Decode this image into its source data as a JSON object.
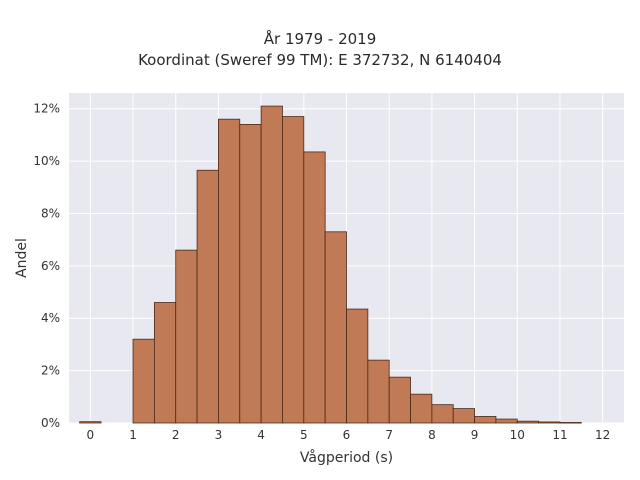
{
  "chart_data": {
    "type": "bar",
    "title": [
      "År 1979 - 2019",
      "Koordinat (Sweref 99 TM): E 372732, N 6140404"
    ],
    "xlabel": "Vågperiod (s)",
    "ylabel": "Andel",
    "xlim": [
      -0.5,
      12.5
    ],
    "ylim": [
      0,
      0.126
    ],
    "xticks": [
      0,
      1,
      2,
      3,
      4,
      5,
      6,
      7,
      8,
      9,
      10,
      11,
      12
    ],
    "xtick_labels": [
      "0",
      "1",
      "2",
      "3",
      "4",
      "5",
      "6",
      "7",
      "8",
      "9",
      "10",
      "11",
      "12"
    ],
    "yticks": [
      0,
      0.02,
      0.04,
      0.06,
      0.08,
      0.1,
      0.12
    ],
    "ytick_labels": [
      "0%",
      "2%",
      "4%",
      "6%",
      "8%",
      "10%",
      "12%"
    ],
    "grid": true,
    "bin_width": 0.5,
    "bins_left": [
      -0.25,
      1,
      1.5,
      2,
      2.5,
      3,
      3.5,
      4,
      4.5,
      5,
      5.5,
      6,
      6.5,
      7,
      7.5,
      8,
      8.5,
      9,
      9.5,
      10,
      10.5,
      11
    ],
    "values": [
      0.0005,
      0.032,
      0.046,
      0.066,
      0.0965,
      0.116,
      0.114,
      0.121,
      0.117,
      0.1035,
      0.073,
      0.0435,
      0.024,
      0.0175,
      0.011,
      0.007,
      0.0055,
      0.0025,
      0.0015,
      0.0007,
      0.0004,
      0.0002
    ],
    "colors": {
      "bar_fill": "#c07a55",
      "bar_edge": "#4a2a1a",
      "plot_bg": "#e8e8f0",
      "grid": "#ffffff"
    }
  }
}
